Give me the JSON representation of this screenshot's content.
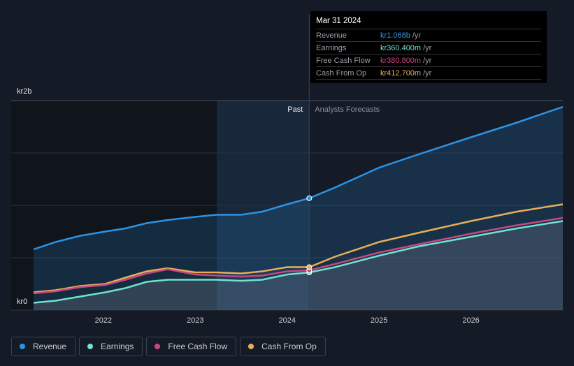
{
  "tooltip": {
    "date": "Mar 31 2024",
    "rows": [
      {
        "label": "Revenue",
        "value": "kr1.068b",
        "unit": "/yr",
        "color": "#2b93e6"
      },
      {
        "label": "Earnings",
        "value": "kr360.400m",
        "unit": "/yr",
        "color": "#6fe3cf"
      },
      {
        "label": "Free Cash Flow",
        "value": "kr380.800m",
        "unit": "/yr",
        "color": "#c8477f"
      },
      {
        "label": "Cash From Op",
        "value": "kr412.700m",
        "unit": "/yr",
        "color": "#e8ae5a"
      }
    ]
  },
  "chart_data": {
    "type": "line",
    "ylabel_top": "kr2b",
    "ylabel_bottom": "kr0",
    "ylim": [
      0,
      2
    ],
    "xlim": [
      2021.24,
      2027.0
    ],
    "xticks": [
      "2022",
      "2023",
      "2024",
      "2025",
      "2026"
    ],
    "past_label": "Past",
    "forecast_label": "Analysts Forecasts",
    "divider_x": 2024.24,
    "x": [
      2021.24,
      2021.48,
      2021.75,
      2022.02,
      2022.24,
      2022.47,
      2022.7,
      2023.0,
      2023.23,
      2023.5,
      2023.73,
      2024.0,
      2024.24,
      2024.52,
      2025.0,
      2025.44,
      2026.0,
      2026.5,
      2027.0
    ],
    "series": [
      {
        "name": "Revenue",
        "color": "#2b93e6",
        "values": [
          0.58,
          0.65,
          0.71,
          0.75,
          0.78,
          0.83,
          0.86,
          0.89,
          0.91,
          0.91,
          0.94,
          1.01,
          1.068,
          1.17,
          1.36,
          1.49,
          1.65,
          1.79,
          1.94
        ]
      },
      {
        "name": "Earnings",
        "color": "#6fe3cf",
        "values": [
          0.07,
          0.09,
          0.13,
          0.17,
          0.21,
          0.27,
          0.29,
          0.29,
          0.29,
          0.28,
          0.29,
          0.34,
          0.36,
          0.41,
          0.52,
          0.61,
          0.7,
          0.78,
          0.85
        ]
      },
      {
        "name": "Free Cash Flow",
        "color": "#c8477f",
        "values": [
          0.16,
          0.18,
          0.22,
          0.24,
          0.29,
          0.35,
          0.39,
          0.34,
          0.33,
          0.32,
          0.33,
          0.37,
          0.38,
          0.44,
          0.55,
          0.63,
          0.73,
          0.81,
          0.88
        ]
      },
      {
        "name": "Cash From Op",
        "color": "#e8ae5a",
        "values": [
          0.17,
          0.19,
          0.23,
          0.25,
          0.31,
          0.37,
          0.4,
          0.36,
          0.36,
          0.35,
          0.37,
          0.41,
          0.41,
          0.51,
          0.65,
          0.74,
          0.85,
          0.94,
          1.01
        ]
      }
    ]
  }
}
